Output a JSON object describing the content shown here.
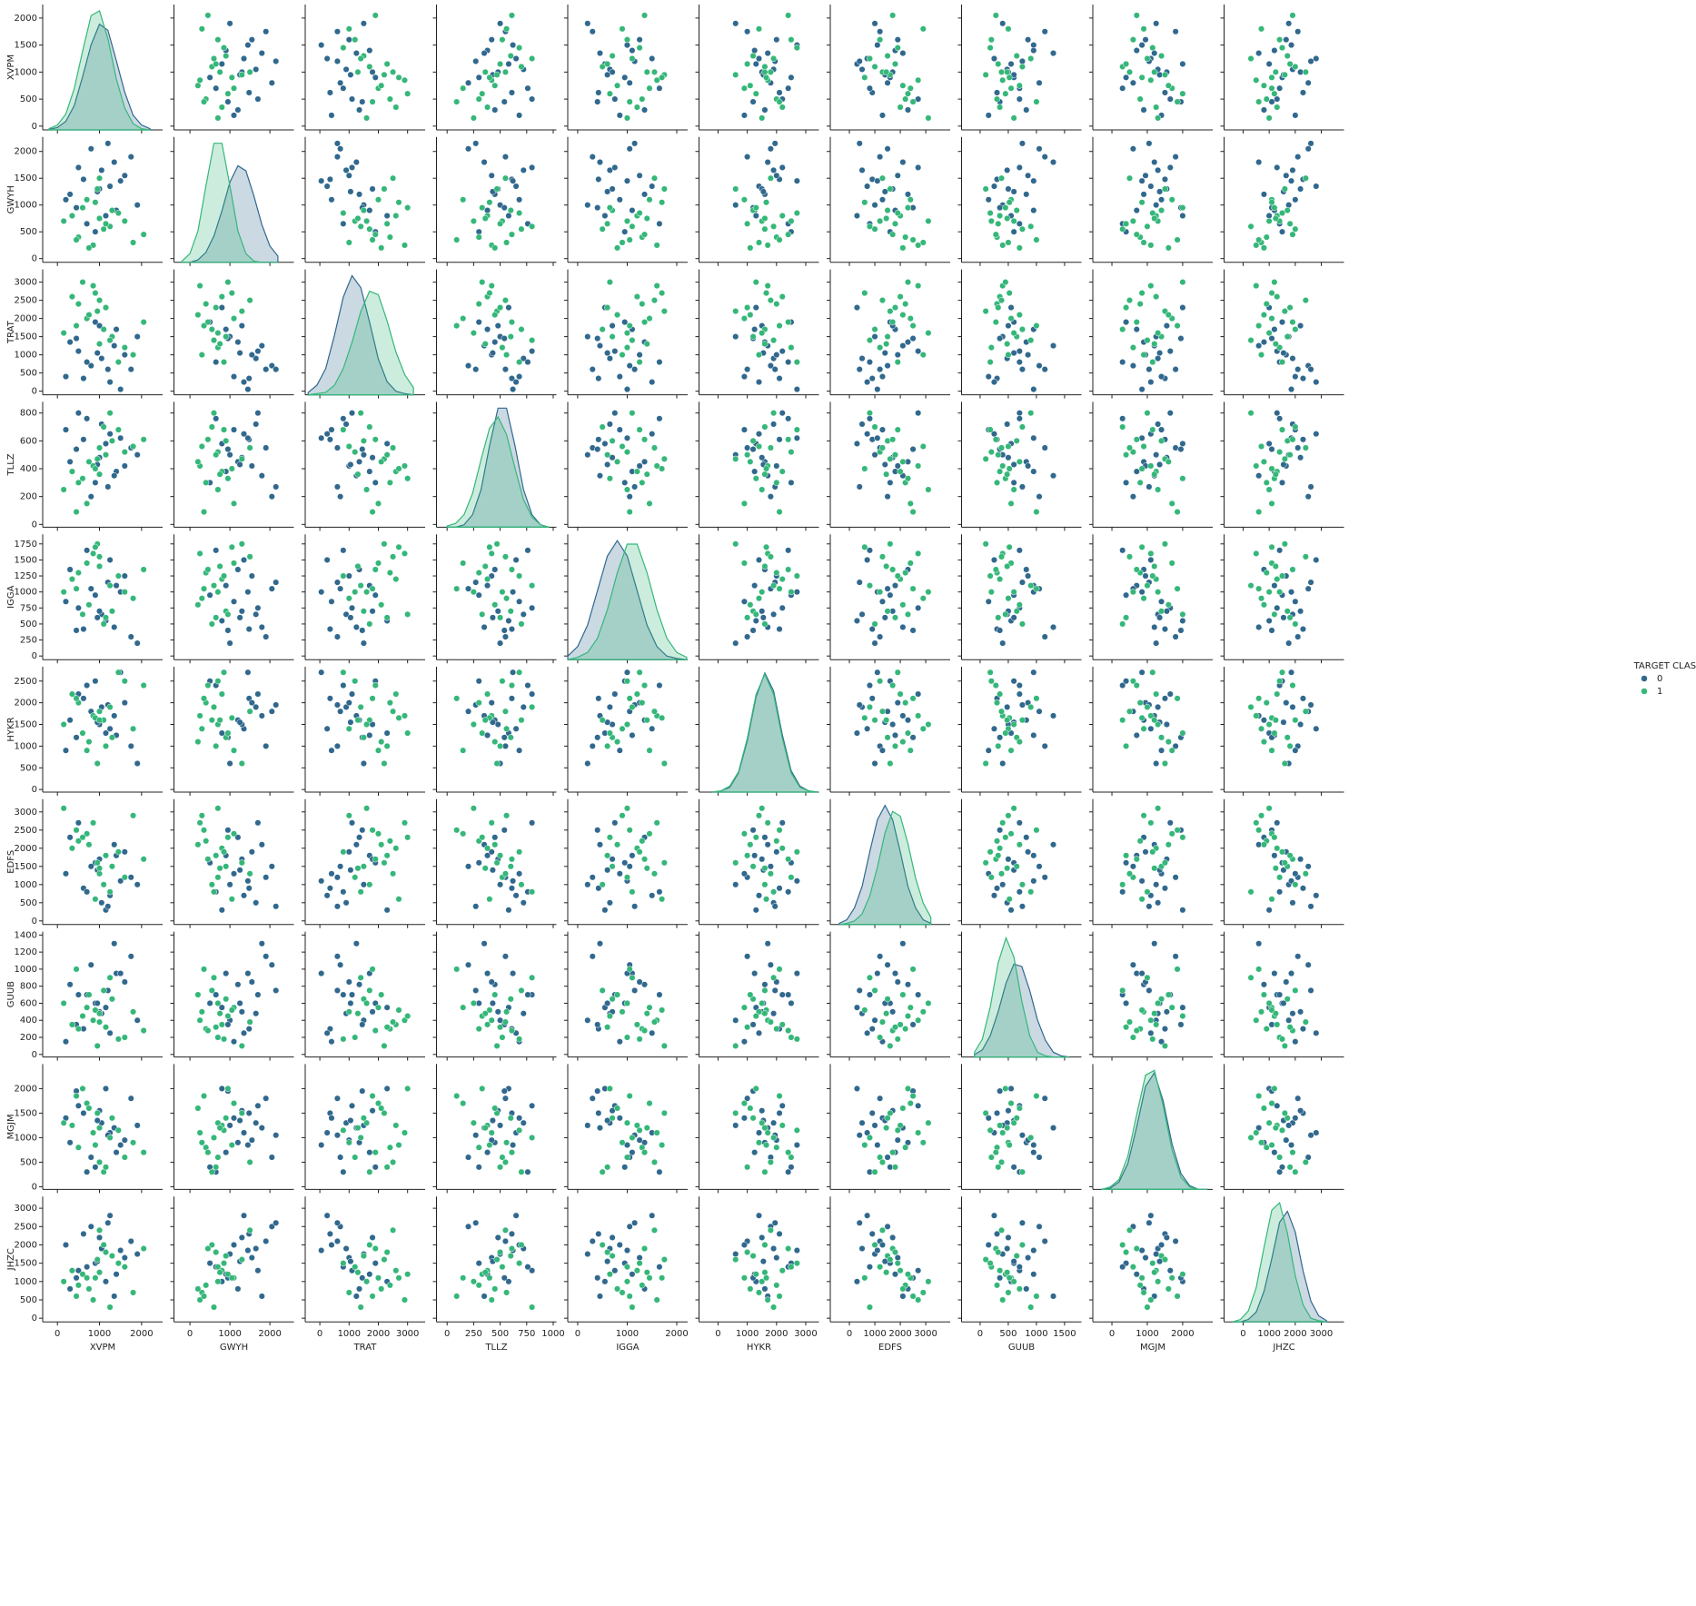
{
  "chart_data": {
    "type": "scatter",
    "legend_title": "TARGET CLASS",
    "legend": "right",
    "variables": [
      {
        "name": "XVPM",
        "xlim": [
          -350,
          2500
        ],
        "ylim": [
          -70,
          2250
        ],
        "xticks": [
          0,
          1000,
          2000
        ],
        "yticks": [
          0,
          500,
          1000,
          1500,
          2000
        ],
        "kde_x": [
          -200,
          0,
          200,
          400,
          600,
          800,
          1000,
          1200,
          1400,
          1600,
          1800,
          2000,
          2200
        ]
      },
      {
        "name": "GWYH",
        "xlim": [
          -400,
          2600
        ],
        "ylim": [
          -70,
          2270
        ],
        "xticks": [
          0,
          1000,
          2000
        ],
        "yticks": [
          0,
          500,
          1000,
          1500,
          2000
        ],
        "kde_x": [
          -200,
          0,
          200,
          400,
          600,
          800,
          1000,
          1200,
          1400,
          1600,
          1800,
          2000,
          2200
        ]
      },
      {
        "name": "TRAT",
        "xlim": [
          -500,
          3600
        ],
        "ylim": [
          -100,
          3350
        ],
        "xticks": [
          0,
          1000,
          2000,
          3000
        ],
        "yticks": [
          0,
          500,
          1000,
          1500,
          2000,
          2500,
          3000
        ],
        "kde_x": [
          -400,
          -100,
          200,
          500,
          800,
          1100,
          1400,
          1700,
          2000,
          2300,
          2600,
          2900,
          3200
        ]
      },
      {
        "name": "TLLZ",
        "xlim": [
          -100,
          1030
        ],
        "ylim": [
          -20,
          880
        ],
        "xticks": [
          0,
          250,
          500,
          750,
          1000
        ],
        "yticks": [
          0,
          200,
          400,
          600,
          800
        ],
        "kde_x": [
          0,
          80,
          160,
          240,
          320,
          400,
          480,
          560,
          640,
          720,
          800,
          880,
          960
        ]
      },
      {
        "name": "IGGA",
        "xlim": [
          -200,
          2220
        ],
        "ylim": [
          -57,
          1900
        ],
        "xticks": [
          0,
          1000,
          2000
        ],
        "yticks": [
          0,
          250,
          500,
          750,
          1000,
          1250,
          1500,
          1750
        ],
        "kde_x": [
          -200,
          0,
          200,
          400,
          600,
          800,
          1000,
          1200,
          1400,
          1600,
          1800,
          2000,
          2200
        ]
      },
      {
        "name": "HYKR",
        "xlim": [
          -650,
          3450
        ],
        "ylim": [
          -60,
          2830
        ],
        "xticks": [
          0,
          1000,
          2000,
          3000
        ],
        "yticks": [
          0,
          500,
          1000,
          1500,
          2000,
          2500
        ],
        "kde_x": [
          -200,
          100,
          400,
          700,
          1000,
          1300,
          1600,
          1900,
          2200,
          2500,
          2800,
          3100,
          3400
        ]
      },
      {
        "name": "EDFS",
        "xlim": [
          -750,
          3960
        ],
        "ylim": [
          -100,
          3350
        ],
        "xticks": [
          0,
          1000,
          2000,
          3000
        ],
        "yticks": [
          0,
          500,
          1000,
          1500,
          2000,
          2500,
          3000
        ],
        "kde_x": [
          -400,
          -100,
          200,
          500,
          800,
          1100,
          1400,
          1700,
          2000,
          2300,
          2600,
          2900,
          3200
        ]
      },
      {
        "name": "GUUB",
        "xlim": [
          -330,
          1800
        ],
        "ylim": [
          -30,
          1440
        ],
        "xticks": [
          0,
          500,
          1000,
          1500
        ],
        "yticks": [
          0,
          200,
          400,
          600,
          800,
          1000,
          1200,
          1400
        ],
        "kde_x": [
          -100,
          40,
          180,
          320,
          460,
          600,
          740,
          880,
          1020,
          1160,
          1300,
          1440,
          1580
        ]
      },
      {
        "name": "MGJM",
        "xlim": [
          -540,
          2850
        ],
        "ylim": [
          -55,
          2500
        ],
        "xticks": [
          0,
          1000,
          2000
        ],
        "yticks": [
          0,
          500,
          1000,
          1500,
          2000
        ],
        "kde_x": [
          -300,
          -50,
          200,
          450,
          700,
          950,
          1200,
          1450,
          1700,
          1950,
          2200,
          2450,
          2700
        ]
      },
      {
        "name": "JHZC",
        "xlim": [
          -730,
          3870
        ],
        "ylim": [
          -100,
          3320
        ],
        "xticks": [
          0,
          1000,
          2000,
          3000
        ],
        "yticks": [
          0,
          500,
          1000,
          1500,
          2000,
          2500,
          3000
        ],
        "kde_x": [
          -400,
          -100,
          200,
          500,
          800,
          1100,
          1400,
          1700,
          2000,
          2300,
          2600,
          2900,
          3200
        ]
      }
    ],
    "series": [
      {
        "name": "0",
        "color": "#31688e",
        "values": [
          [
            620,
            1480,
            350,
            610,
            420,
            2100,
            900,
            300,
            1500,
            2300
          ],
          [
            1400,
            900,
            1700,
            380,
            1100,
            1250,
            1800,
            950,
            700,
            1200
          ],
          [
            1050,
            1650,
            900,
            720,
            650,
            1900,
            500,
            480,
            1300,
            1900
          ],
          [
            300,
            1200,
            1350,
            450,
            1350,
            1600,
            2300,
            820,
            900,
            800
          ],
          [
            1750,
            1900,
            600,
            550,
            300,
            1000,
            1200,
            1150,
            1800,
            2100
          ],
          [
            900,
            500,
            1900,
            300,
            950,
            2500,
            1600,
            600,
            400,
            1500
          ],
          [
            1250,
            1350,
            250,
            650,
            1500,
            1400,
            700,
            250,
            1100,
            2800
          ],
          [
            500,
            1700,
            1100,
            800,
            750,
            2200,
            2700,
            700,
            1650,
            1300
          ],
          [
            1900,
            1000,
            1500,
            500,
            200,
            600,
            1000,
            400,
            1250,
            1750
          ],
          [
            800,
            2050,
            700,
            200,
            1050,
            1800,
            1500,
            1050,
            600,
            2500
          ],
          [
            1150,
            800,
            2300,
            580,
            550,
            1300,
            300,
            550,
            2000,
            1000
          ],
          [
            1600,
            1550,
            1000,
            420,
            1250,
            2000,
            1900,
            850,
            950,
            1650
          ],
          [
            200,
            1100,
            400,
            680,
            850,
            900,
            1300,
            150,
            1400,
            2000
          ],
          [
            1350,
            1800,
            1250,
            350,
            450,
            1700,
            2100,
            1300,
            1200,
            600
          ],
          [
            700,
            650,
            800,
            760,
            1650,
            2400,
            800,
            700,
            300,
            1400
          ],
          [
            1000,
            1300,
            1800,
            480,
            700,
            1500,
            1700,
            500,
            1550,
            2200
          ],
          [
            1500,
            1450,
            50,
            620,
            1000,
            2700,
            1100,
            950,
            850,
            1850
          ],
          [
            450,
            950,
            1450,
            540,
            400,
            1200,
            2500,
            350,
            1950,
            1100
          ],
          [
            1200,
            2150,
            600,
            270,
            1150,
            1950,
            400,
            750,
            1050,
            2600
          ],
          [
            950,
            1250,
            1050,
            430,
            600,
            1550,
            1400,
            600,
            1350,
            1550
          ]
        ],
        "density": [
          [
            0.4,
            2,
            7,
            20,
            44,
            70,
            87,
            82,
            57,
            31,
            12,
            4,
            1
          ],
          [
            0,
            0,
            2,
            8,
            21,
            41,
            64,
            77,
            73,
            53,
            30,
            13,
            5
          ],
          [
            2,
            8,
            22,
            50,
            82,
            100,
            90,
            61,
            30,
            11,
            3,
            1,
            0
          ],
          [
            0,
            0,
            2,
            10,
            30,
            65,
            95,
            95,
            65,
            30,
            10,
            2,
            0
          ],
          [
            3,
            11,
            29,
            58,
            87,
            100,
            87,
            58,
            29,
            11,
            3,
            1,
            0
          ],
          [
            0,
            1,
            4,
            16,
            43,
            80,
            100,
            85,
            48,
            18,
            5,
            1,
            0
          ],
          [
            1,
            4,
            14,
            32,
            61,
            88,
            100,
            88,
            61,
            32,
            14,
            4,
            1
          ],
          [
            2,
            6,
            18,
            38,
            62,
            78,
            76,
            56,
            31,
            14,
            4,
            1,
            0
          ],
          [
            0,
            1,
            6,
            21,
            51,
            84,
            95,
            72,
            37,
            13,
            3,
            0,
            0
          ],
          [
            0,
            0,
            2,
            8,
            25,
            52,
            82,
            91,
            74,
            42,
            17,
            5,
            1
          ]
        ]
      },
      {
        "name": "1",
        "color": "#35b779",
        "values": [
          [
            500,
            400,
            2400,
            300,
            1300,
            2000,
            2200,
            300,
            800,
            900
          ],
          [
            1300,
            900,
            1500,
            600,
            700,
            1200,
            1500,
            650,
            1400,
            1700
          ],
          [
            850,
            250,
            2900,
            420,
            1600,
            1700,
            2700,
            400,
            1100,
            500
          ],
          [
            1600,
            700,
            1200,
            520,
            1000,
            2500,
            1200,
            200,
            600,
            1400
          ],
          [
            700,
            1100,
            2000,
            150,
            1450,
            900,
            2400,
            550,
            1700,
            1100
          ],
          [
            1100,
            550,
            1700,
            700,
            500,
            1600,
            1000,
            750,
            300,
            2000
          ],
          [
            350,
            800,
            2600,
            380,
            1200,
            2200,
            2000,
            350,
            1250,
            1300
          ],
          [
            1800,
            300,
            1000,
            560,
            900,
            1400,
            2900,
            500,
            900,
            700
          ],
          [
            950,
            1300,
            2200,
            470,
            1750,
            600,
            1600,
            100,
            1500,
            1600
          ],
          [
            1250,
            600,
            1400,
            800,
            1100,
            1900,
            800,
            900,
            1000,
            300
          ],
          [
            600,
            950,
            3000,
            330,
            650,
            1300,
            2300,
            450,
            2000,
            1200
          ],
          [
            2050,
            450,
            1900,
            610,
            1350,
            2400,
            1700,
            280,
            700,
            1900
          ],
          [
            150,
            700,
            1600,
            250,
            1000,
            1500,
            3100,
            600,
            1300,
            1000
          ],
          [
            1000,
            1500,
            2500,
            550,
            1550,
            1800,
            1300,
            380,
            500,
            2400
          ],
          [
            750,
            200,
            2100,
            450,
            800,
            1100,
            2100,
            700,
            1600,
            800
          ],
          [
            1450,
            850,
            800,
            680,
            1250,
            2700,
            1900,
            180,
            1150,
            1500
          ],
          [
            900,
            1050,
            2700,
            400,
            1700,
            1650,
            600,
            520,
            850,
            1100
          ],
          [
            450,
            350,
            1800,
            90,
            1050,
            2100,
            2500,
            1000,
            1850,
            600
          ],
          [
            1150,
            650,
            2300,
            500,
            600,
            1000,
            1800,
            320,
            400,
            1800
          ],
          [
            1000,
            750,
            1300,
            360,
            1400,
            1600,
            1450,
            480,
            1200,
            1250
          ]
        ],
        "density": [
          [
            1,
            4,
            13,
            34,
            65,
            94,
            98,
            75,
            42,
            18,
            5,
            1,
            0
          ],
          [
            1,
            7,
            25,
            61,
            95,
            95,
            61,
            25,
            7,
            1,
            0,
            0,
            0
          ],
          [
            0,
            1,
            2,
            8,
            22,
            44,
            70,
            87,
            84,
            62,
            36,
            17,
            6
          ],
          [
            1,
            3,
            10,
            27,
            54,
            79,
            88,
            74,
            47,
            22,
            8,
            2,
            0
          ],
          [
            0,
            2,
            6,
            18,
            42,
            73,
            97,
            97,
            73,
            42,
            18,
            6,
            2
          ],
          [
            0,
            1,
            5,
            17,
            45,
            82,
            99,
            82,
            45,
            16,
            4,
            1,
            0
          ],
          [
            0,
            1,
            3,
            9,
            24,
            48,
            77,
            95,
            91,
            68,
            39,
            18,
            6
          ],
          [
            4,
            15,
            42,
            79,
            100,
            84,
            47,
            18,
            4,
            1,
            0,
            0,
            0
          ],
          [
            0,
            2,
            8,
            27,
            61,
            93,
            97,
            68,
            32,
            10,
            2,
            0,
            0
          ],
          [
            0,
            2,
            9,
            28,
            61,
            92,
            98,
            73,
            38,
            14,
            3,
            1,
            0
          ]
        ]
      }
    ]
  }
}
